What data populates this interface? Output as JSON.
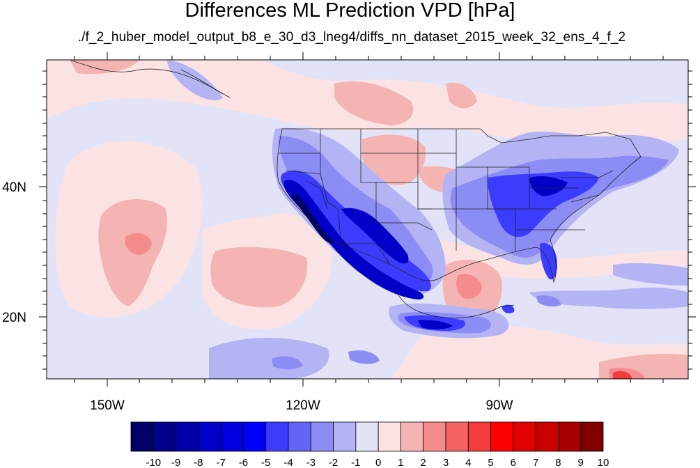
{
  "title": "Differences ML Prediction VPD [hPa]",
  "subtitle": "./f_2_huber_model_output_b8_e_30_d3_lneg4/diffs_nn_dataset_2015_week_32_ens_4_f_2",
  "map": {
    "x_ticks": [
      {
        "label": "150W"
      },
      {
        "label": "120W"
      },
      {
        "label": "90W"
      }
    ],
    "y_ticks": [
      {
        "label": "40N"
      },
      {
        "label": "20N"
      }
    ]
  },
  "colorbar": {
    "labels": [
      "-10",
      "-9",
      "-8",
      "-7",
      "-6",
      "-5",
      "-4",
      "-3",
      "-2",
      "-1",
      "0",
      "1",
      "2",
      "3",
      "4",
      "5",
      "6",
      "7",
      "8",
      "9",
      "10"
    ],
    "colors": [
      "#000066",
      "#00008a",
      "#0000a8",
      "#0000c8",
      "#0000e0",
      "#0000ff",
      "#3c3cff",
      "#6464f5",
      "#8c8cf5",
      "#b4b4f5",
      "#e3e3f7",
      "#fbe3e3",
      "#f5b4b4",
      "#f58c8c",
      "#f56464",
      "#f53c3c",
      "#ff0000",
      "#e00000",
      "#c80000",
      "#a80000",
      "#800000"
    ]
  }
}
